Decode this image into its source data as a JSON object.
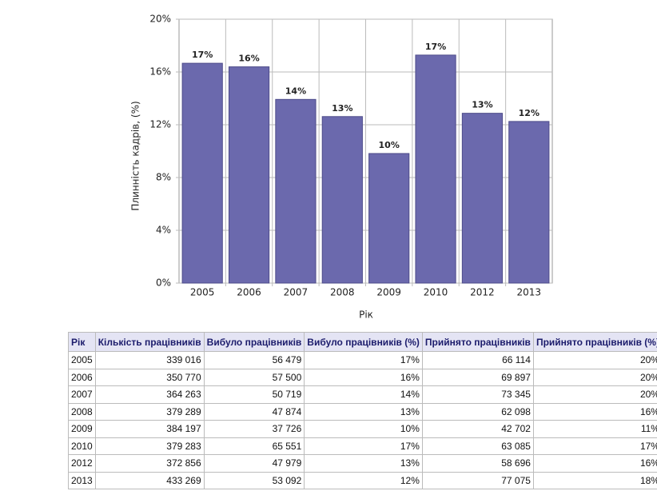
{
  "chart_data": {
    "type": "bar",
    "x_label": "Рік",
    "y_label": "Плинність кадрів, (%)",
    "categories": [
      "2005",
      "2006",
      "2007",
      "2008",
      "2009",
      "2010",
      "2012",
      "2013"
    ],
    "values": [
      16.66,
      16.39,
      13.92,
      12.62,
      9.82,
      17.28,
      12.87,
      12.25
    ],
    "value_labels": [
      "17%",
      "16%",
      "14%",
      "13%",
      "10%",
      "17%",
      "13%",
      "12%"
    ],
    "color": "#6b69ad",
    "ylim": [
      0,
      20
    ],
    "yticks": [
      {
        "value": 0,
        "label": "0%"
      },
      {
        "value": 4,
        "label": "4%"
      },
      {
        "value": 8,
        "label": "8%"
      },
      {
        "value": 12,
        "label": "12%"
      },
      {
        "value": 16,
        "label": "16%"
      },
      {
        "value": 20,
        "label": "20%"
      }
    ],
    "grid": true
  },
  "table": {
    "columns": [
      "Рік",
      "Кількість працівників",
      "Вибуло працівників",
      "Вибуло працівників (%)",
      "Прийнято працівників",
      "Прийнято працівників (%)"
    ],
    "rows": [
      [
        "2005",
        "339 016",
        "56 479",
        "17%",
        "66 114",
        "20%"
      ],
      [
        "2006",
        "350 770",
        "57 500",
        "16%",
        "69 897",
        "20%"
      ],
      [
        "2007",
        "364 263",
        "50 719",
        "14%",
        "73 345",
        "20%"
      ],
      [
        "2008",
        "379 289",
        "47 874",
        "13%",
        "62 098",
        "16%"
      ],
      [
        "2009",
        "384 197",
        "37 726",
        "10%",
        "42 702",
        "11%"
      ],
      [
        "2010",
        "379 283",
        "65 551",
        "17%",
        "63 085",
        "17%"
      ],
      [
        "2012",
        "372 856",
        "47 979",
        "13%",
        "58 696",
        "16%"
      ],
      [
        "2013",
        "433 269",
        "53 092",
        "12%",
        "77 075",
        "18%"
      ]
    ]
  }
}
